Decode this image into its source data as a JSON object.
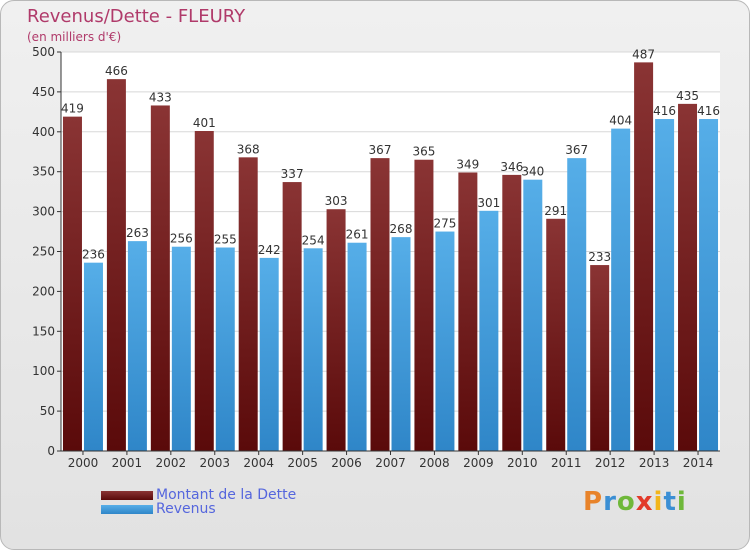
{
  "title": "Revenus/Dette - FLEURY",
  "subtitle": "(en milliers d'€)",
  "logo": {
    "text": "Proxiti",
    "letter_colors": [
      "#e8832a",
      "#3b8fd4",
      "#6fb83a",
      "#e23a2a",
      "#f2b51b",
      "#3b8fd4",
      "#6fb83a"
    ]
  },
  "legend": [
    {
      "label": "Montant de la Dette",
      "color": "#6e1616"
    },
    {
      "label": "Revenus",
      "color": "#3f96da"
    }
  ],
  "chart_data": {
    "type": "bar",
    "title": "Revenus/Dette - FLEURY",
    "subtitle": "(en milliers d'€)",
    "categories": [
      "2000",
      "2001",
      "2002",
      "2003",
      "2004",
      "2005",
      "2006",
      "2007",
      "2008",
      "2009",
      "2010",
      "2011",
      "2012",
      "2013",
      "2014"
    ],
    "series": [
      {
        "name": "Montant de la Dette",
        "color": "#6e1616",
        "values": [
          419,
          466,
          433,
          401,
          368,
          337,
          303,
          367,
          365,
          349,
          346,
          291,
          233,
          487,
          435
        ]
      },
      {
        "name": "Revenus",
        "color": "#3f96da",
        "values": [
          236,
          263,
          256,
          255,
          242,
          254,
          261,
          268,
          275,
          301,
          340,
          367,
          404,
          416,
          416
        ]
      }
    ],
    "ylim": [
      0,
      500
    ],
    "yticks": [
      0,
      50,
      100,
      150,
      200,
      250,
      300,
      350,
      400,
      450,
      500
    ],
    "grid": true,
    "legend_position": "bottom-left"
  }
}
